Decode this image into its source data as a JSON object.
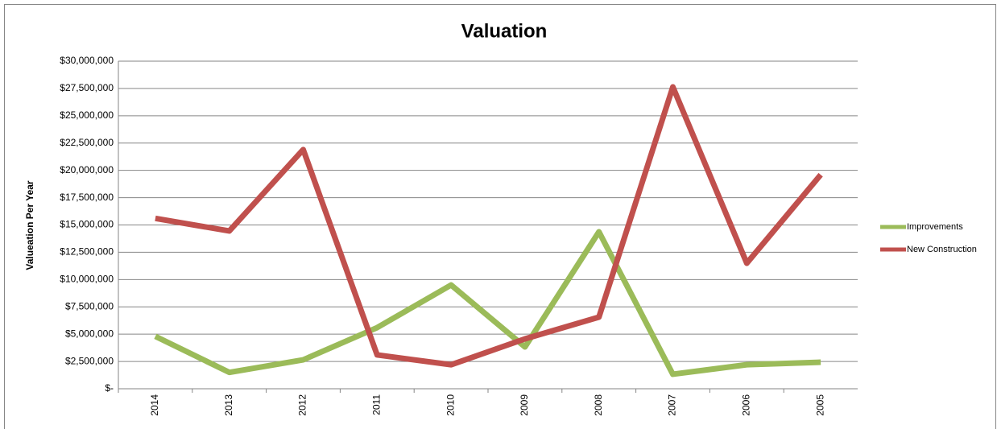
{
  "chart_data": {
    "type": "line",
    "title": "Valuation",
    "y_label": "Valueation Per Year",
    "categories": [
      "2014",
      "2013",
      "2012",
      "2011",
      "2010",
      "2009",
      "2008",
      "2007",
      "2006",
      "2005"
    ],
    "series": [
      {
        "name": "Improvements",
        "color": "#9bbb59",
        "values": [
          4800000,
          1500000,
          2650000,
          5600000,
          9500000,
          3830000,
          14370000,
          1330000,
          2200000,
          2430000
        ]
      },
      {
        "name": "New Construction",
        "color": "#c0504d",
        "values": [
          15600000,
          14450000,
          21900000,
          3100000,
          2200000,
          4570000,
          6560000,
          27640000,
          11500000,
          19600000
        ]
      }
    ],
    "ylim": [
      0,
      30000000
    ],
    "yticks": [
      {
        "value": 0,
        "label": "$-"
      },
      {
        "value": 2500000,
        "label": "$2,500,000"
      },
      {
        "value": 5000000,
        "label": "$5,000,000"
      },
      {
        "value": 7500000,
        "label": "$7,500,000"
      },
      {
        "value": 10000000,
        "label": "$10,000,000"
      },
      {
        "value": 12500000,
        "label": "$12,500,000"
      },
      {
        "value": 15000000,
        "label": "$15,000,000"
      },
      {
        "value": 17500000,
        "label": "$17,500,000"
      },
      {
        "value": 20000000,
        "label": "$20,000,000"
      },
      {
        "value": 22500000,
        "label": "$22,500,000"
      },
      {
        "value": 25000000,
        "label": "$25,000,000"
      },
      {
        "value": 27500000,
        "label": "$27,500,000"
      },
      {
        "value": 30000000,
        "label": "$30,000,000"
      }
    ],
    "grid": true,
    "legend": "right"
  }
}
